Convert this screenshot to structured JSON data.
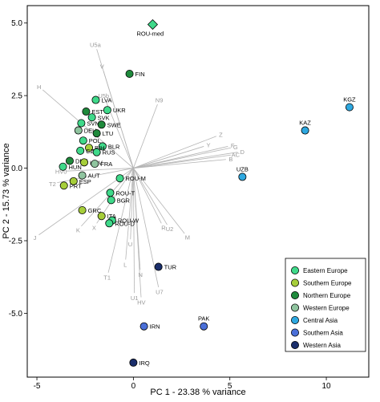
{
  "chart_data": {
    "type": "scatter",
    "title": "",
    "xlabel": "PC 1 - 23.38 % variance",
    "ylabel": "PC 2 - 15.73 % variance",
    "xlim": [
      -5.5,
      12.2
    ],
    "ylim": [
      -7.2,
      5.6
    ],
    "xticks": [
      -5,
      0,
      5,
      10
    ],
    "yticks": [
      -5.0,
      -2.5,
      0.0,
      2.5,
      5.0
    ],
    "ytick_labels": [
      "-5.0",
      "-2.5",
      "0.0",
      "2.5",
      "5.0"
    ],
    "grid": false,
    "legend_position": "bottom-right",
    "groups": [
      {
        "name": "Eastern Europe",
        "color": "#3fd98a"
      },
      {
        "name": "Southern Europe",
        "color": "#a6ce3a"
      },
      {
        "name": "Northern Europe",
        "color": "#1f8a3c"
      },
      {
        "name": "Western Europe",
        "color": "#8fc49f"
      },
      {
        "name": "Central Asia",
        "color": "#2ea8e0"
      },
      {
        "name": "Southern Asia",
        "color": "#4a6fd8"
      },
      {
        "name": "Western Asia",
        "color": "#1a2e6b"
      }
    ],
    "points": [
      {
        "label": "ROU-med",
        "x": 1.0,
        "y": 4.95,
        "group": "Eastern Europe",
        "shape": "diamond"
      },
      {
        "label": "FIN",
        "x": -0.2,
        "y": 3.25,
        "group": "Northern Europe"
      },
      {
        "label": "LVA",
        "x": -1.95,
        "y": 2.35,
        "group": "Eastern Europe"
      },
      {
        "label": "UKR",
        "x": -1.35,
        "y": 2.0,
        "group": "Eastern Europe"
      },
      {
        "label": "EST",
        "x": -2.45,
        "y": 1.95,
        "group": "Northern Europe"
      },
      {
        "label": "SVK",
        "x": -2.15,
        "y": 1.75,
        "group": "Eastern Europe"
      },
      {
        "label": "SVN",
        "x": -2.7,
        "y": 1.55,
        "group": "Eastern Europe"
      },
      {
        "label": "SWE",
        "x": -1.65,
        "y": 1.5,
        "group": "Northern Europe"
      },
      {
        "label": "DEU",
        "x": -2.85,
        "y": 1.3,
        "group": "Western Europe"
      },
      {
        "label": "LTU",
        "x": -1.9,
        "y": 1.2,
        "group": "Northern Europe"
      },
      {
        "label": "POL",
        "x": -2.6,
        "y": 0.95,
        "group": "Eastern Europe"
      },
      {
        "label": "BLR",
        "x": -1.6,
        "y": 0.75,
        "group": "Eastern Europe"
      },
      {
        "label": "BIH",
        "x": -2.3,
        "y": 0.7,
        "group": "Southern Europe"
      },
      {
        "label": "CZE",
        "x": -2.75,
        "y": 0.6,
        "group": "Eastern Europe"
      },
      {
        "label": "RUS",
        "x": -1.9,
        "y": 0.55,
        "group": "Eastern Europe"
      },
      {
        "label": "DNK",
        "x": -3.3,
        "y": 0.25,
        "group": "Northern Europe"
      },
      {
        "label": "HRV",
        "x": -2.55,
        "y": 0.2,
        "group": "Southern Europe"
      },
      {
        "label": "FRA",
        "x": -2.0,
        "y": 0.15,
        "group": "Western Europe"
      },
      {
        "label": "HUN",
        "x": -3.65,
        "y": 0.05,
        "group": "Eastern Europe"
      },
      {
        "label": "AUT",
        "x": -2.65,
        "y": -0.25,
        "group": "Western Europe"
      },
      {
        "label": "ROU-M",
        "x": -0.7,
        "y": -0.35,
        "group": "Eastern Europe"
      },
      {
        "label": "ESP",
        "x": -3.1,
        "y": -0.45,
        "group": "Southern Europe"
      },
      {
        "label": "PRT",
        "x": -3.6,
        "y": -0.6,
        "group": "Southern Europe"
      },
      {
        "label": "ROU-T",
        "x": -1.2,
        "y": -0.85,
        "group": "Eastern Europe"
      },
      {
        "label": "BGR",
        "x": -1.15,
        "y": -1.1,
        "group": "Eastern Europe"
      },
      {
        "label": "GRC",
        "x": -2.65,
        "y": -1.45,
        "group": "Southern Europe"
      },
      {
        "label": "ITA",
        "x": -1.65,
        "y": -1.65,
        "group": "Southern Europe"
      },
      {
        "label": "ROU-W",
        "x": -1.1,
        "y": -1.8,
        "group": "Eastern Europe"
      },
      {
        "label": "ROU-D",
        "x": -1.25,
        "y": -1.9,
        "group": "Eastern Europe"
      },
      {
        "label": "KGZ",
        "x": 11.2,
        "y": 2.1,
        "group": "Central Asia"
      },
      {
        "label": "KAZ",
        "x": 8.9,
        "y": 1.3,
        "group": "Central Asia"
      },
      {
        "label": "UZB",
        "x": 5.65,
        "y": -0.3,
        "group": "Central Asia"
      },
      {
        "label": "TUR",
        "x": 1.3,
        "y": -3.4,
        "group": "Western Asia"
      },
      {
        "label": "PAK",
        "x": 3.65,
        "y": -5.45,
        "group": "Southern Asia"
      },
      {
        "label": "IRN",
        "x": 0.55,
        "y": -5.45,
        "group": "Southern Asia"
      },
      {
        "label": "IRQ",
        "x": 0.0,
        "y": -6.7,
        "group": "Western Asia"
      }
    ],
    "loadings": [
      {
        "label": "U5a",
        "x": -1.9,
        "y": 4.1
      },
      {
        "label": "V",
        "x": -1.55,
        "y": 3.35
      },
      {
        "label": "H",
        "x": -4.7,
        "y": 2.7
      },
      {
        "label": "U5b",
        "x": -1.45,
        "y": 2.35
      },
      {
        "label": "N9",
        "x": 1.25,
        "y": 2.2
      },
      {
        "label": "Z",
        "x": 4.3,
        "y": 1.1
      },
      {
        "label": "F",
        "x": 4.9,
        "y": 0.75
      },
      {
        "label": "G",
        "x": 5.05,
        "y": 0.7
      },
      {
        "label": "Y",
        "x": 3.65,
        "y": 0.75
      },
      {
        "label": "AC",
        "x": 5.05,
        "y": 0.45
      },
      {
        "label": "D",
        "x": 5.4,
        "y": 0.55
      },
      {
        "label": "B",
        "x": 4.8,
        "y": 0.3
      },
      {
        "label": "HV0",
        "x": -3.5,
        "y": -0.1
      },
      {
        "label": "T2",
        "x": -3.95,
        "y": -0.5
      },
      {
        "label": "K",
        "x": -2.7,
        "y": -2.0
      },
      {
        "label": "J",
        "x": -4.9,
        "y": -2.3
      },
      {
        "label": "X",
        "x": -1.9,
        "y": -1.9
      },
      {
        "label": "R",
        "x": 1.45,
        "y": -1.9
      },
      {
        "label": "U2",
        "x": 1.75,
        "y": -1.95
      },
      {
        "label": "M",
        "x": 2.65,
        "y": -2.25
      },
      {
        "label": "U",
        "x": -0.15,
        "y": -2.45
      },
      {
        "label": "L",
        "x": -0.4,
        "y": -3.15
      },
      {
        "label": "T1",
        "x": -1.3,
        "y": -3.6
      },
      {
        "label": "N",
        "x": 0.35,
        "y": -3.5
      },
      {
        "label": "U7",
        "x": 1.3,
        "y": -4.1
      },
      {
        "label": "U1",
        "x": 0.05,
        "y": -4.3
      },
      {
        "label": "HV",
        "x": 0.4,
        "y": -4.45
      }
    ]
  }
}
